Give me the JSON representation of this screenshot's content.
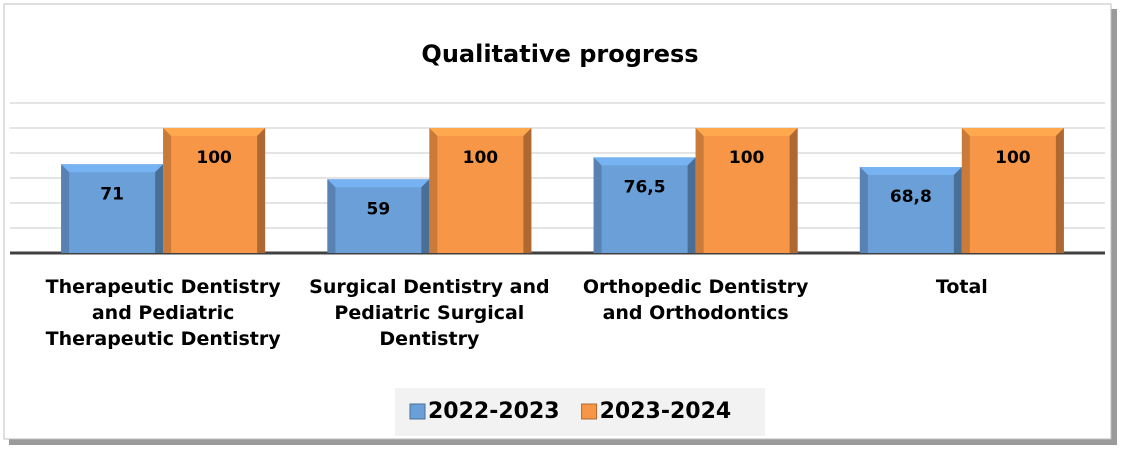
{
  "chart_data": {
    "type": "bar",
    "title": "Qualitative progress",
    "categories": [
      "Therapeutic Dentistry and Pediatric Therapeutic Dentistry",
      "Surgical Dentistry and Pediatric Surgical Dentistry",
      "Orthopedic Dentistry and Orthodontics",
      "Total"
    ],
    "series": [
      {
        "name": "2022-2023",
        "color": "#6a9fd8",
        "values": [
          71,
          59,
          76.5,
          68.8
        ],
        "value_labels": [
          "71",
          "59",
          "76,5",
          "68,8"
        ]
      },
      {
        "name": "2023-2024",
        "color": "#f79646",
        "values": [
          100,
          100,
          100,
          100
        ]
      }
    ],
    "ylim": [
      0,
      120
    ],
    "yticks": [
      0,
      20,
      40,
      60,
      80,
      100,
      120
    ],
    "grid": true,
    "legend": "bottom"
  }
}
